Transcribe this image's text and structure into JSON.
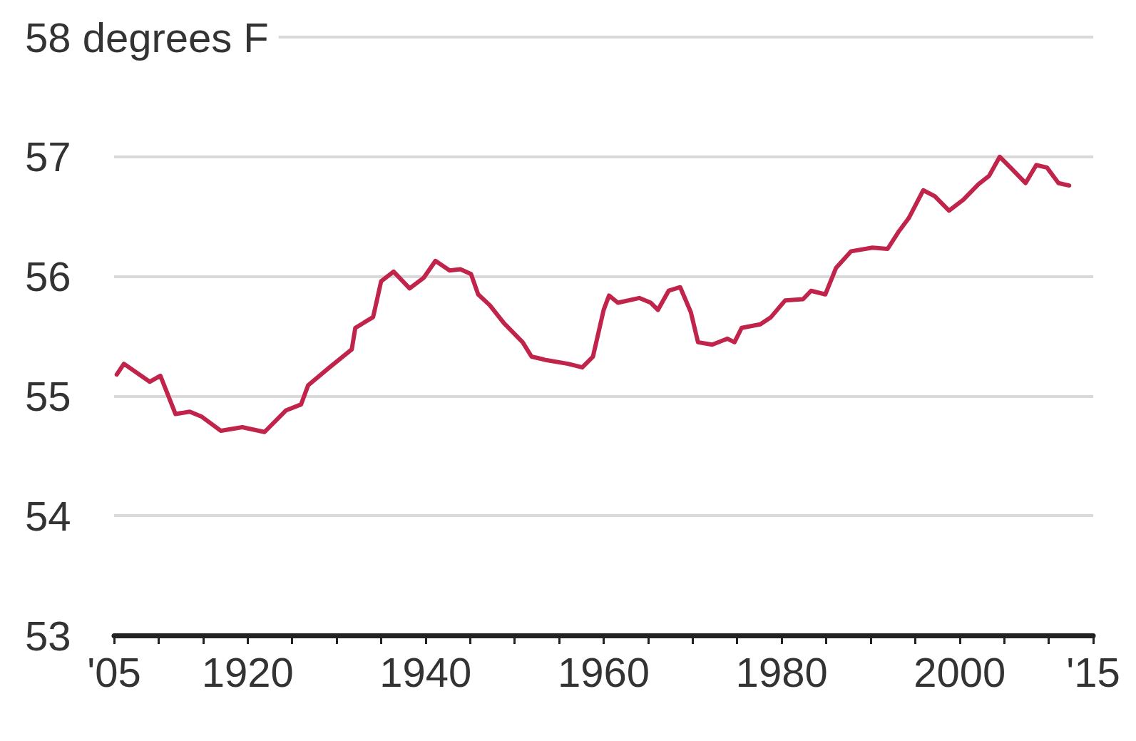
{
  "chart_data": {
    "type": "line",
    "line_style": "solid",
    "marker": "none",
    "grid": "y",
    "xlim": [
      1905,
      2015
    ],
    "ylim": [
      53,
      58
    ],
    "xticks": [
      {
        "value": 1905,
        "label": "'05"
      },
      {
        "value": 1910,
        "label": null
      },
      {
        "value": 1915,
        "label": null
      },
      1920,
      {
        "value": 1925,
        "label": null
      },
      {
        "value": 1930,
        "label": null
      },
      {
        "value": 1935,
        "label": null
      },
      1940,
      {
        "value": 1945,
        "label": null
      },
      {
        "value": 1950,
        "label": null
      },
      {
        "value": 1955,
        "label": null
      },
      1960,
      {
        "value": 1965,
        "label": null
      },
      {
        "value": 1970,
        "label": null
      },
      {
        "value": 1975,
        "label": null
      },
      1980,
      {
        "value": 1985,
        "label": null
      },
      {
        "value": 1990,
        "label": null
      },
      {
        "value": 1995,
        "label": null
      },
      2000,
      {
        "value": 2005,
        "label": null
      },
      {
        "value": 2010,
        "label": null
      },
      {
        "value": 2015,
        "label": "'15"
      }
    ],
    "yticks": [
      53,
      54,
      55,
      56,
      57,
      {
        "value": 58,
        "label": "58 degrees F"
      }
    ],
    "series": [
      {
        "color": "#c0244a",
        "x": [
          1905.3,
          1906.1,
          1909,
          1910.2,
          1911.9,
          1913.5,
          1914.8,
          1917,
          1919.4,
          1921.9,
          1924.3,
          1926,
          1926.8,
          1929.2,
          1931.7,
          1932.1,
          1934.1,
          1935,
          1936.4,
          1938.2,
          1939.8,
          1941.1,
          1942.7,
          1943.9,
          1945.1,
          1945.9,
          1947.2,
          1948.8,
          1950.9,
          1951.9,
          1953.6,
          1956,
          1957.6,
          1958.8,
          1960,
          1960.6,
          1961.6,
          1964,
          1965.3,
          1966.1,
          1967.3,
          1968.6,
          1969.8,
          1970.6,
          1972.2,
          1973.9,
          1974.7,
          1975.5,
          1977.6,
          1978.8,
          1980.4,
          1982.4,
          1983.3,
          1984.9,
          1986.1,
          1987.8,
          1990.2,
          1991.9,
          1993.1,
          1994.3,
          1995.9,
          1997.2,
          1998.8,
          2000.4,
          2002.1,
          2003.3,
          2004.5,
          2005.7,
          2007.4,
          2008.6,
          2009.8,
          2011.1,
          2012.3
        ],
        "values": [
          55.18,
          55.27,
          55.12,
          55.17,
          54.85,
          54.87,
          54.83,
          54.71,
          54.74,
          54.7,
          54.88,
          54.93,
          55.09,
          55.24,
          55.39,
          55.57,
          55.66,
          55.96,
          56.04,
          55.9,
          55.99,
          56.13,
          56.05,
          56.06,
          56.02,
          55.85,
          55.76,
          55.61,
          55.45,
          55.33,
          55.3,
          55.27,
          55.24,
          55.33,
          55.72,
          55.84,
          55.78,
          55.82,
          55.78,
          55.72,
          55.88,
          55.91,
          55.7,
          55.45,
          55.43,
          55.48,
          55.45,
          55.57,
          55.6,
          55.66,
          55.8,
          55.81,
          55.88,
          55.85,
          56.07,
          56.21,
          56.24,
          56.23,
          56.37,
          56.49,
          56.72,
          56.67,
          56.55,
          56.64,
          56.77,
          56.84,
          57.0,
          56.91,
          56.78,
          56.93,
          56.91,
          56.78,
          56.76
        ]
      }
    ]
  }
}
